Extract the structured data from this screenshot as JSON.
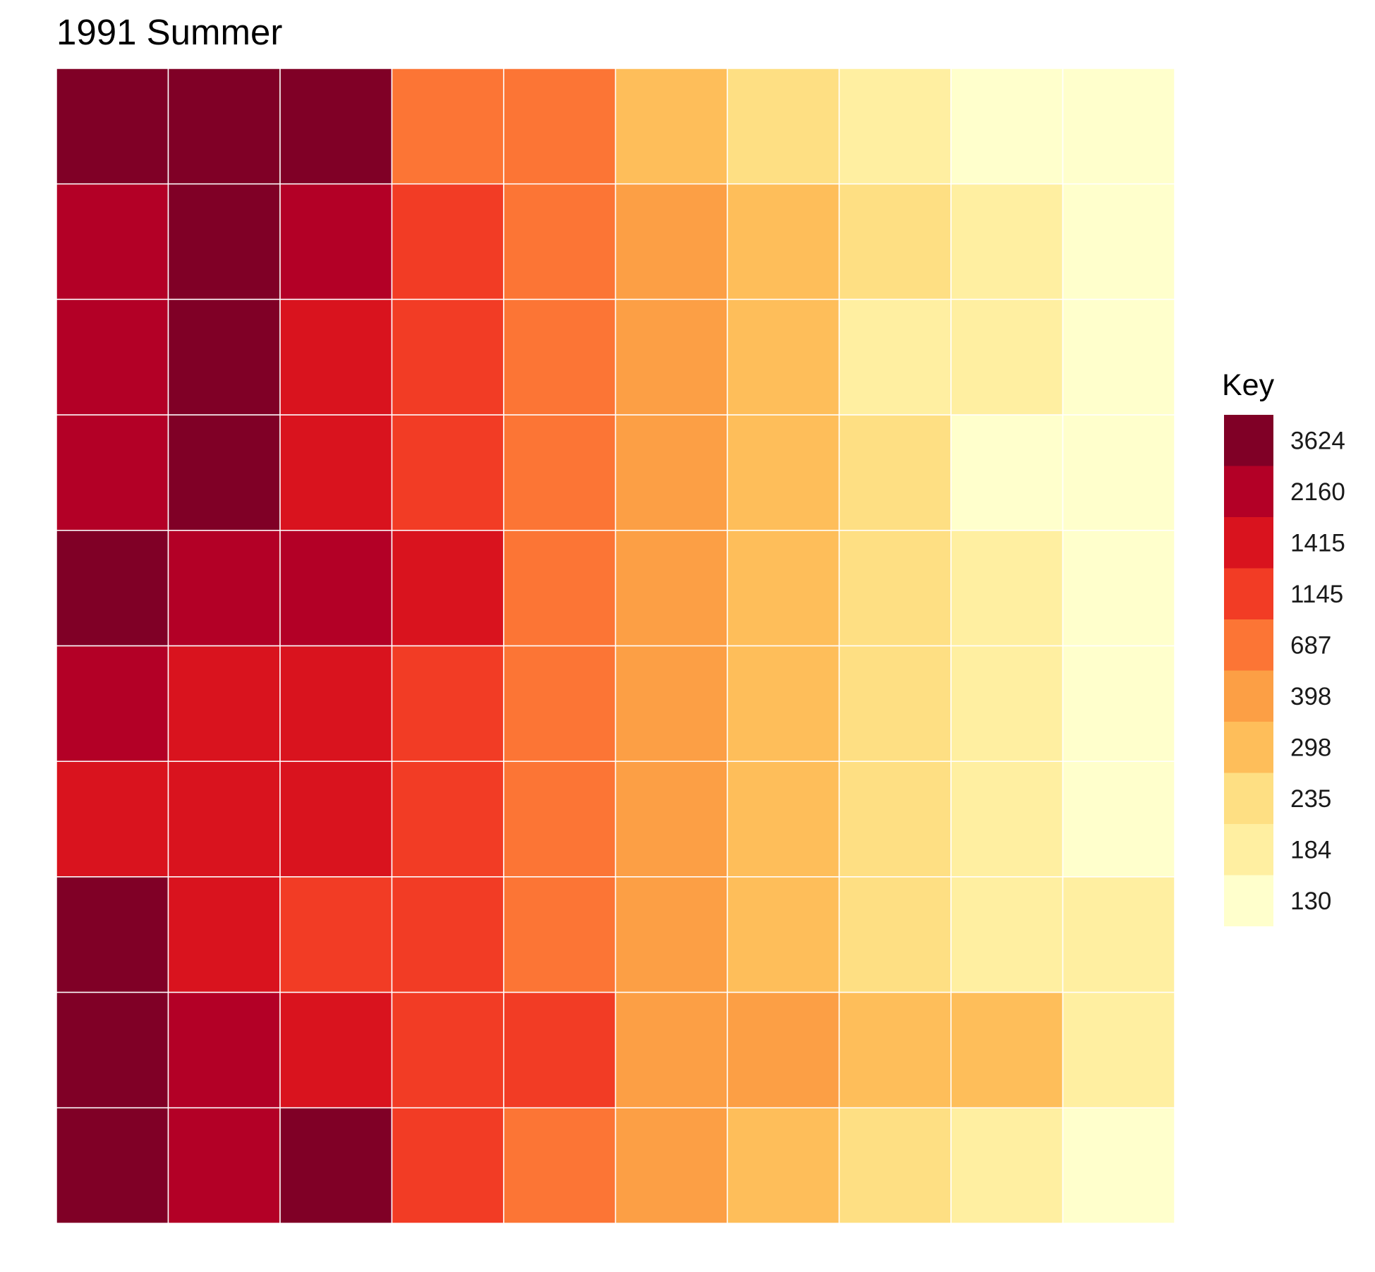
{
  "chart_data": {
    "type": "heatmap",
    "title": "1991 Summer",
    "xlabel": "",
    "ylabel": "",
    "grid": false,
    "legend": {
      "title": "Key",
      "placement": "right",
      "bins": [
        {
          "label": "3624",
          "color": "#800026"
        },
        {
          "label": "2160",
          "color": "#b30026"
        },
        {
          "label": "1415",
          "color": "#d9131e"
        },
        {
          "label": "1145",
          "color": "#f23c25"
        },
        {
          "label": "687",
          "color": "#fc7535"
        },
        {
          "label": "398",
          "color": "#fc9f45"
        },
        {
          "label": "298",
          "color": "#febe5a"
        },
        {
          "label": "235",
          "color": "#fedf83"
        },
        {
          "label": "184",
          "color": "#ffefa1"
        },
        {
          "label": "130",
          "color": "#ffffcc"
        }
      ]
    },
    "n_rows": 10,
    "n_cols": 10,
    "cells": [
      [
        0,
        0,
        0,
        4,
        4,
        6,
        7,
        8,
        9,
        9
      ],
      [
        1,
        0,
        1,
        3,
        4,
        5,
        6,
        7,
        8,
        9
      ],
      [
        1,
        0,
        2,
        3,
        4,
        5,
        6,
        8,
        8,
        9
      ],
      [
        1,
        0,
        2,
        3,
        4,
        5,
        6,
        7,
        9,
        9
      ],
      [
        0,
        1,
        1,
        2,
        4,
        5,
        6,
        7,
        8,
        9
      ],
      [
        1,
        2,
        2,
        3,
        4,
        5,
        6,
        7,
        8,
        9
      ],
      [
        2,
        2,
        2,
        3,
        4,
        5,
        6,
        7,
        8,
        9
      ],
      [
        0,
        2,
        3,
        3,
        4,
        5,
        6,
        7,
        8,
        8
      ],
      [
        0,
        1,
        2,
        3,
        3,
        5,
        5,
        6,
        6,
        8
      ],
      [
        0,
        1,
        0,
        3,
        4,
        5,
        6,
        7,
        8,
        9
      ]
    ]
  }
}
